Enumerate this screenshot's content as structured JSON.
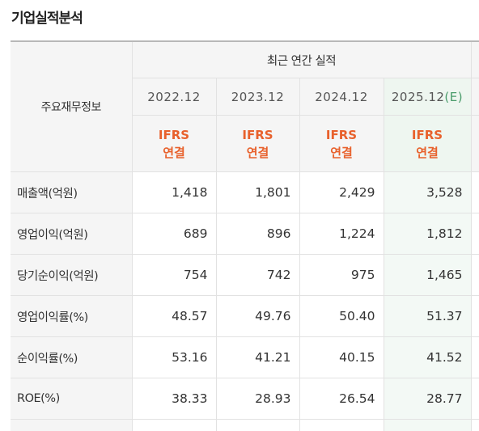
{
  "section_title": "기업실적분석",
  "table": {
    "corner_label": "주요재무정보",
    "group_header": "최근 연간 실적",
    "years": [
      {
        "label": "2022.12",
        "estimate": ""
      },
      {
        "label": "2023.12",
        "estimate": ""
      },
      {
        "label": "2024.12",
        "estimate": ""
      },
      {
        "label": "2025.12",
        "estimate": "(E)"
      }
    ],
    "standard_line1": "IFRS",
    "standard_line2": "연결",
    "rows": [
      {
        "label": "매출액(억원)",
        "values": [
          "1,418",
          "1,801",
          "2,429",
          "3,528"
        ]
      },
      {
        "label": "영업이익(억원)",
        "values": [
          "689",
          "896",
          "1,224",
          "1,812"
        ]
      },
      {
        "label": "당기순이익(억원)",
        "values": [
          "754",
          "742",
          "975",
          "1,465"
        ]
      },
      {
        "label": "영업이익률(%)",
        "values": [
          "48.57",
          "49.76",
          "50.40",
          "51.37"
        ]
      },
      {
        "label": "순이익률(%)",
        "values": [
          "53.16",
          "41.21",
          "40.15",
          "41.52"
        ]
      },
      {
        "label": "ROE(%)",
        "values": [
          "38.33",
          "28.93",
          "26.54",
          "28.77"
        ]
      }
    ]
  }
}
